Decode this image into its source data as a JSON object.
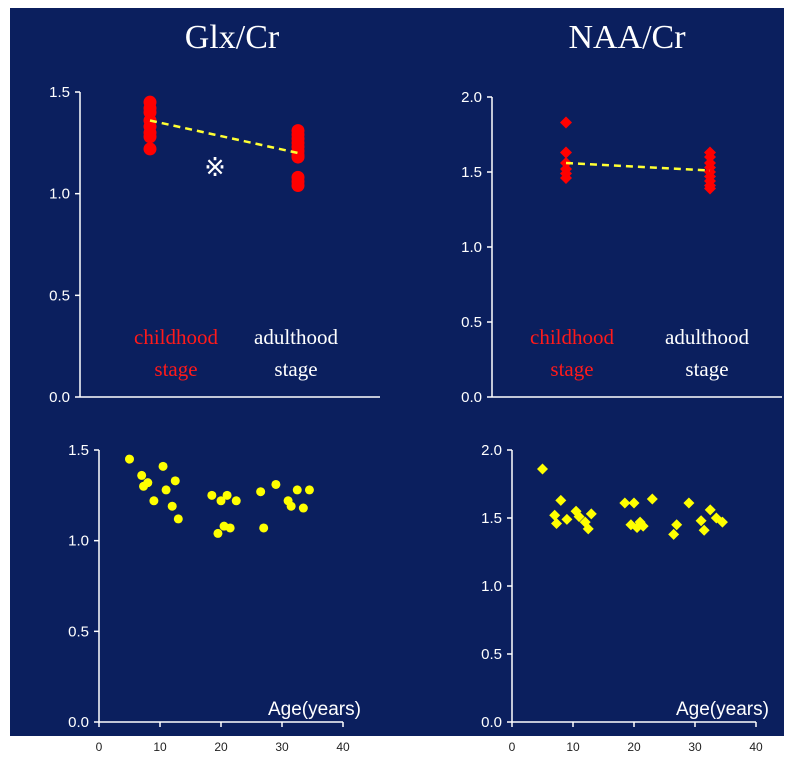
{
  "panels": {
    "glx": {
      "title": "Glx/Cr"
    },
    "naa": {
      "title": "NAA/Cr"
    }
  },
  "stage_labels": {
    "childhood": [
      "childhood",
      "stage"
    ],
    "adulthood": [
      "adulthood",
      "stage"
    ]
  },
  "significance_marker": "※",
  "age_axis_label": "Age(years)",
  "colors": {
    "background": "#0b1f5e",
    "childhood": "#ff1a1a",
    "adulthood": "#ffffff",
    "marker_red": "#ff0000",
    "marker_yellow": "#ffff00",
    "trend_line": "#ffff33"
  },
  "chart_data": [
    {
      "id": "glx-stage",
      "type": "scatter",
      "title": "Glx/Cr",
      "marker": "circle",
      "categories": [
        "childhood stage",
        "adulthood stage"
      ],
      "ylim": [
        0,
        1.5
      ],
      "yticks": [
        "0.0",
        "0.5",
        "1.0",
        "1.5"
      ],
      "series": [
        {
          "category": "childhood stage",
          "values": [
            1.45,
            1.42,
            1.4,
            1.36,
            1.33,
            1.3,
            1.28,
            1.22
          ]
        },
        {
          "category": "adulthood stage",
          "values": [
            1.31,
            1.29,
            1.27,
            1.25,
            1.23,
            1.21,
            1.19,
            1.18,
            1.08,
            1.06,
            1.04
          ]
        }
      ],
      "trend": [
        1.36,
        1.2
      ],
      "annotation": "※"
    },
    {
      "id": "naa-stage",
      "type": "scatter",
      "title": "NAA/Cr",
      "marker": "diamond",
      "categories": [
        "childhood stage",
        "adulthood stage"
      ],
      "ylim": [
        0,
        2.0
      ],
      "yticks": [
        "0.0",
        "0.5",
        "1.0",
        "1.5",
        "2.0"
      ],
      "series": [
        {
          "category": "childhood stage",
          "values": [
            1.83,
            1.63,
            1.56,
            1.52,
            1.49,
            1.46
          ]
        },
        {
          "category": "adulthood stage",
          "values": [
            1.63,
            1.6,
            1.56,
            1.53,
            1.5,
            1.47,
            1.44,
            1.41,
            1.39
          ]
        }
      ],
      "trend": [
        1.56,
        1.51
      ]
    },
    {
      "id": "glx-age",
      "type": "scatter",
      "marker": "circle",
      "xlabel": "Age(years)",
      "xlim": [
        0,
        40
      ],
      "xticks": [
        "0",
        "10",
        "20",
        "30",
        "40"
      ],
      "ylim": [
        0,
        1.5
      ],
      "yticks": [
        "0.0",
        "0.5",
        "1.0",
        "1.5"
      ],
      "x": [
        5,
        7,
        7.3,
        8,
        9,
        10.5,
        11,
        12,
        12.5,
        13,
        18.5,
        19.5,
        20,
        20.5,
        21,
        21.5,
        22.5,
        26.5,
        27,
        29,
        31,
        31.5,
        32.5,
        33.5,
        34.5
      ],
      "y": [
        1.45,
        1.36,
        1.3,
        1.32,
        1.22,
        1.41,
        1.28,
        1.19,
        1.33,
        1.12,
        1.25,
        1.04,
        1.22,
        1.08,
        1.25,
        1.07,
        1.22,
        1.27,
        1.07,
        1.31,
        1.22,
        1.19,
        1.28,
        1.18,
        1.28
      ]
    },
    {
      "id": "naa-age",
      "type": "scatter",
      "marker": "diamond",
      "xlabel": "Age(years)",
      "xlim": [
        0,
        40
      ],
      "xticks": [
        "0",
        "10",
        "20",
        "30",
        "40"
      ],
      "ylim": [
        0,
        2.0
      ],
      "yticks": [
        "0.0",
        "0.5",
        "1.0",
        "1.5",
        "2.0"
      ],
      "x": [
        5,
        7,
        7.3,
        8,
        9,
        10.5,
        11,
        12,
        12.5,
        13,
        18.5,
        19.5,
        20,
        20.5,
        21,
        21.5,
        23,
        26.5,
        27,
        29,
        31,
        31.5,
        32.5,
        33.5,
        34.5
      ],
      "y": [
        1.86,
        1.52,
        1.46,
        1.63,
        1.49,
        1.55,
        1.51,
        1.47,
        1.42,
        1.53,
        1.61,
        1.45,
        1.61,
        1.43,
        1.47,
        1.44,
        1.64,
        1.38,
        1.45,
        1.61,
        1.48,
        1.41,
        1.56,
        1.5,
        1.47
      ]
    }
  ]
}
